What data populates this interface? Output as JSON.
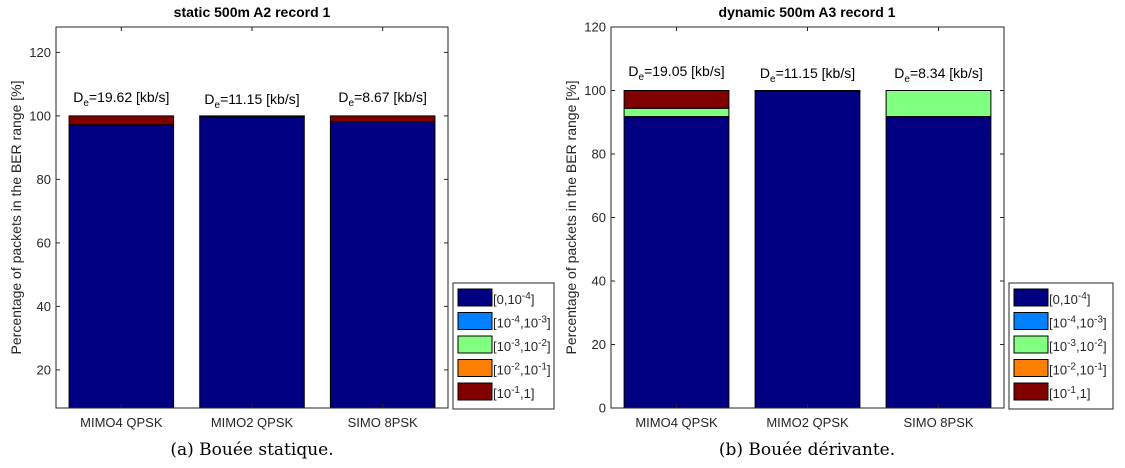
{
  "chart_data": [
    {
      "type": "bar",
      "stacked": true,
      "title": "static 500m A2 record 1",
      "caption": "(a) Bouée statique.",
      "ylabel": "Percentage of packets in the BER range [%]",
      "ylim": [
        8,
        128
      ],
      "yticks": [
        20,
        40,
        60,
        80,
        100,
        120
      ],
      "categories": [
        "MIMO4 QPSK",
        "MIMO2 QPSK",
        "SIMO 8PSK"
      ],
      "annotations": [
        {
          "prefix": "D",
          "sub": "e",
          "text": "=19.62 [kb/s]"
        },
        {
          "prefix": "D",
          "sub": "e",
          "text": "=11.15 [kb/s]"
        },
        {
          "prefix": "D",
          "sub": "e",
          "text": "=8.67 [kb/s]"
        }
      ],
      "series": [
        {
          "name": "[0,10^-4]",
          "color": "#000080",
          "values": [
            97.2,
            99.7,
            98.2
          ]
        },
        {
          "name": "[10^-4,10^-3]",
          "color": "#0080ff",
          "values": [
            0,
            0,
            0
          ]
        },
        {
          "name": "[10^-3,10^-2]",
          "color": "#80ff80",
          "values": [
            0,
            0,
            0
          ]
        },
        {
          "name": "[10^-2,10^-1]",
          "color": "#ff8000",
          "values": [
            0,
            0,
            0
          ]
        },
        {
          "name": "[10^-1,1]",
          "color": "#800000",
          "values": [
            2.8,
            0.3,
            1.8
          ]
        }
      ]
    },
    {
      "type": "bar",
      "stacked": true,
      "title": "dynamic 500m A3 record 1",
      "caption": "(b) Bouée dérivante.",
      "ylabel": "Percentage of packets in the BER range [%]",
      "ylim": [
        0,
        120
      ],
      "yticks": [
        0,
        20,
        40,
        60,
        80,
        100,
        120
      ],
      "categories": [
        "MIMO4 QPSK",
        "MIMO2 QPSK",
        "SIMO 8PSK"
      ],
      "annotations": [
        {
          "prefix": "D",
          "sub": "e",
          "text": "=19.05 [kb/s]"
        },
        {
          "prefix": "D",
          "sub": "e",
          "text": "=11.15 [kb/s]"
        },
        {
          "prefix": "D",
          "sub": "e",
          "text": "=8.34 [kb/s]"
        }
      ],
      "series": [
        {
          "name": "[0,10^-4]",
          "color": "#000080",
          "values": [
            91.8,
            99.7,
            91.8
          ]
        },
        {
          "name": "[10^-4,10^-3]",
          "color": "#0080ff",
          "values": [
            0,
            0,
            0
          ]
        },
        {
          "name": "[10^-3,10^-2]",
          "color": "#80ff80",
          "values": [
            2.6,
            0,
            8.2
          ]
        },
        {
          "name": "[10^-2,10^-1]",
          "color": "#ff8000",
          "values": [
            0,
            0,
            0
          ]
        },
        {
          "name": "[10^-1,1]",
          "color": "#800000",
          "values": [
            5.6,
            0.3,
            0
          ]
        }
      ]
    }
  ],
  "legend": [
    {
      "base": "[0,10",
      "sup1": "-4",
      "mid": "]",
      "sup2": "",
      "end": ""
    },
    {
      "base": "[10",
      "sup1": "-4",
      "mid": ",10",
      "sup2": "-3",
      "end": "]"
    },
    {
      "base": "[10",
      "sup1": "-3",
      "mid": ",10",
      "sup2": "-2",
      "end": "]"
    },
    {
      "base": "[10",
      "sup1": "-2",
      "mid": ",10",
      "sup2": "-1",
      "end": "]"
    },
    {
      "base": "[10",
      "sup1": "-1",
      "mid": ",1]",
      "sup2": "",
      "end": ""
    }
  ]
}
